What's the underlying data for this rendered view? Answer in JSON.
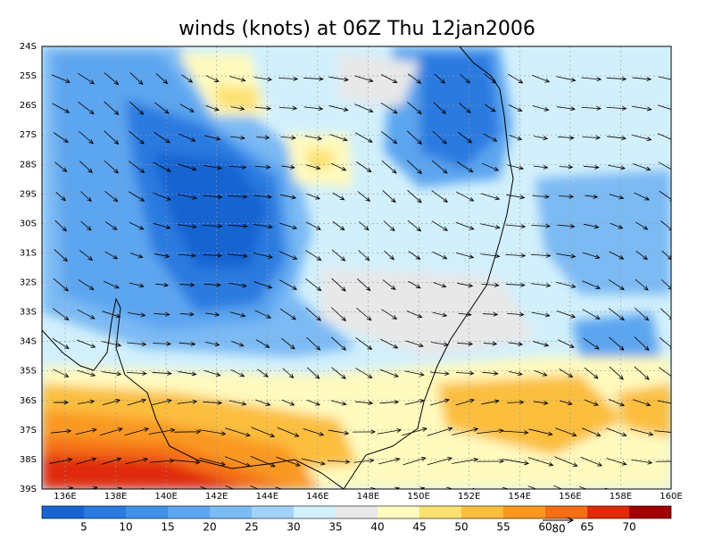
{
  "title": "winds (knots) at 06Z Thu 12jan2006",
  "lat_labels": [
    "24S",
    "25S",
    "26S",
    "27S",
    "28S",
    "29S",
    "30S",
    "31S",
    "32S",
    "33S",
    "34S",
    "35S",
    "36S",
    "37S",
    "38S",
    "39S"
  ],
  "lon_labels": [
    "136E",
    "138E",
    "140E",
    "142E",
    "144E",
    "146E",
    "148E",
    "150E",
    "152E",
    "154E",
    "156E",
    "158E",
    "160E"
  ],
  "colorbar": {
    "labels": [
      "5",
      "10",
      "15",
      "20",
      "25",
      "30",
      "35",
      "40",
      "45",
      "50",
      "55",
      "60",
      "65",
      "70"
    ],
    "colors": [
      "#1964d2",
      "#2a7ae0",
      "#4090e8",
      "#5ca5f0",
      "#7cbaf4",
      "#a2d2fa",
      "#d2f0fc",
      "#e8e8e8",
      "#fffabe",
      "#fce070",
      "#fbbe3c",
      "#fa9820",
      "#f56e14",
      "#e02a0a",
      "#a00000"
    ]
  },
  "reference_vector": "80"
}
